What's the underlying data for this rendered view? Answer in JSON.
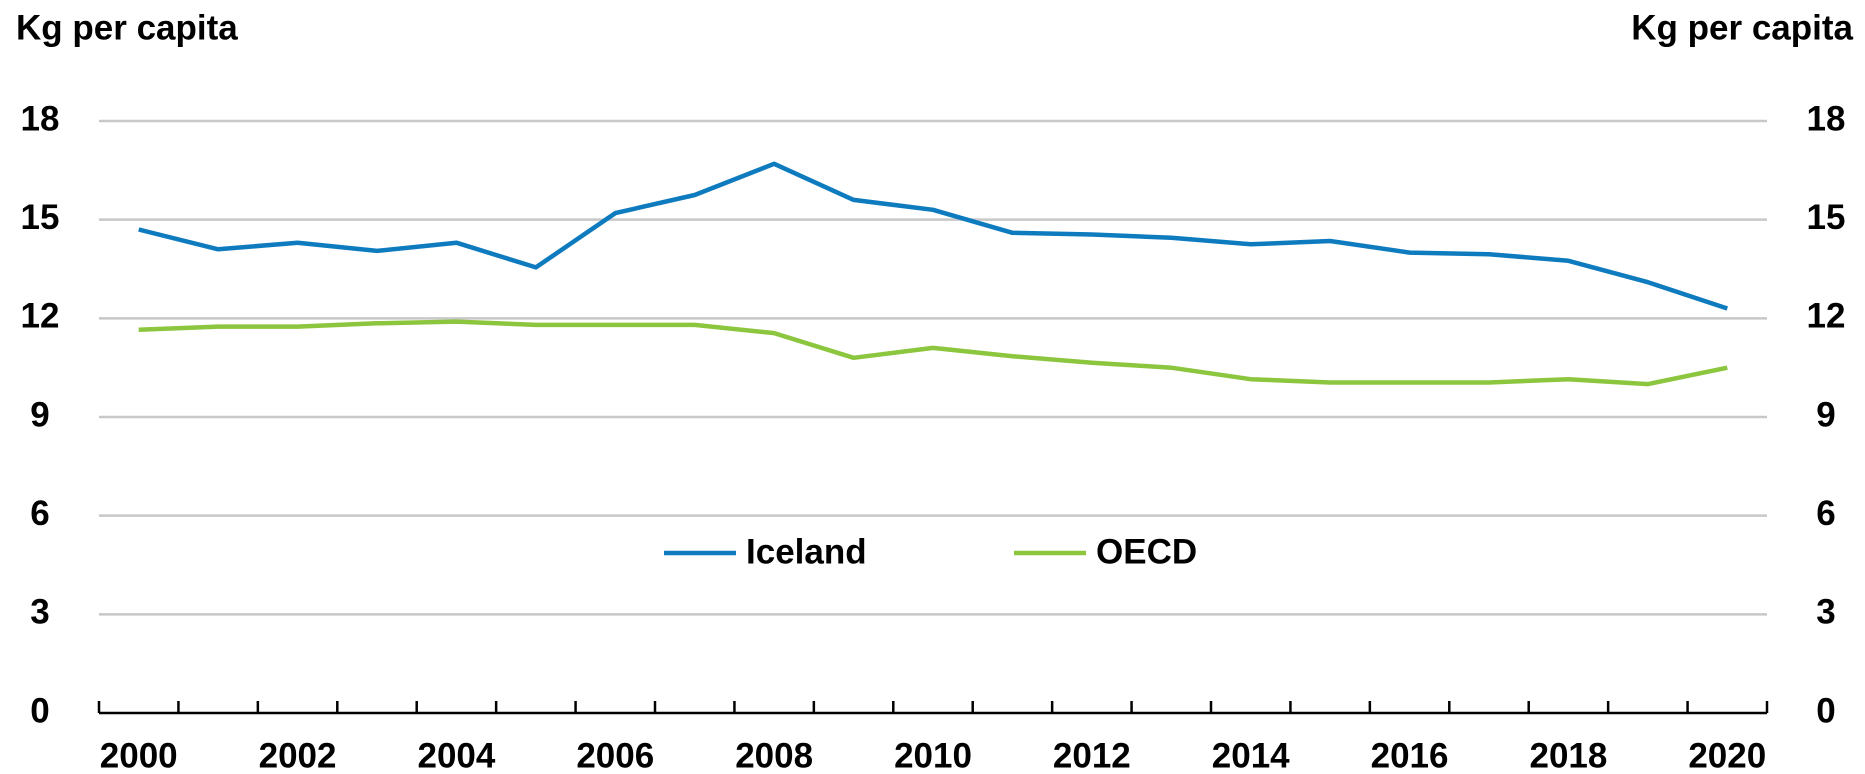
{
  "chart_data": {
    "type": "line",
    "y_label": "Kg per capita",
    "y2_label": "Kg per capita",
    "categories": [
      "2000",
      null,
      "2002",
      null,
      "2004",
      null,
      "2006",
      null,
      "2008",
      null,
      "2010",
      null,
      "2012",
      null,
      "2014",
      null,
      "2016",
      null,
      "2018",
      null,
      "2020"
    ],
    "series": [
      {
        "name": "Iceland",
        "color": "#0f7bbf",
        "values": [
          14.7,
          14.1,
          14.3,
          14.05,
          14.3,
          13.55,
          15.2,
          15.75,
          16.7,
          15.6,
          15.3,
          14.6,
          14.55,
          14.45,
          14.25,
          14.35,
          14.0,
          13.95,
          13.75,
          13.1,
          12.3
        ]
      },
      {
        "name": "OECD",
        "color": "#8cc63f",
        "values": [
          11.65,
          11.75,
          11.75,
          11.85,
          11.9,
          11.8,
          11.8,
          11.8,
          11.55,
          10.8,
          11.1,
          10.85,
          10.65,
          10.5,
          10.15,
          10.05,
          10.05,
          10.05,
          10.15,
          10.0,
          10.5
        ]
      }
    ],
    "ylim": [
      0,
      18
    ],
    "yticks": [
      0,
      3,
      6,
      9,
      12,
      15,
      18
    ],
    "y2lim": [
      0,
      18
    ],
    "y2ticks": [
      0,
      3,
      6,
      9,
      12,
      15,
      18
    ],
    "grid": true
  }
}
